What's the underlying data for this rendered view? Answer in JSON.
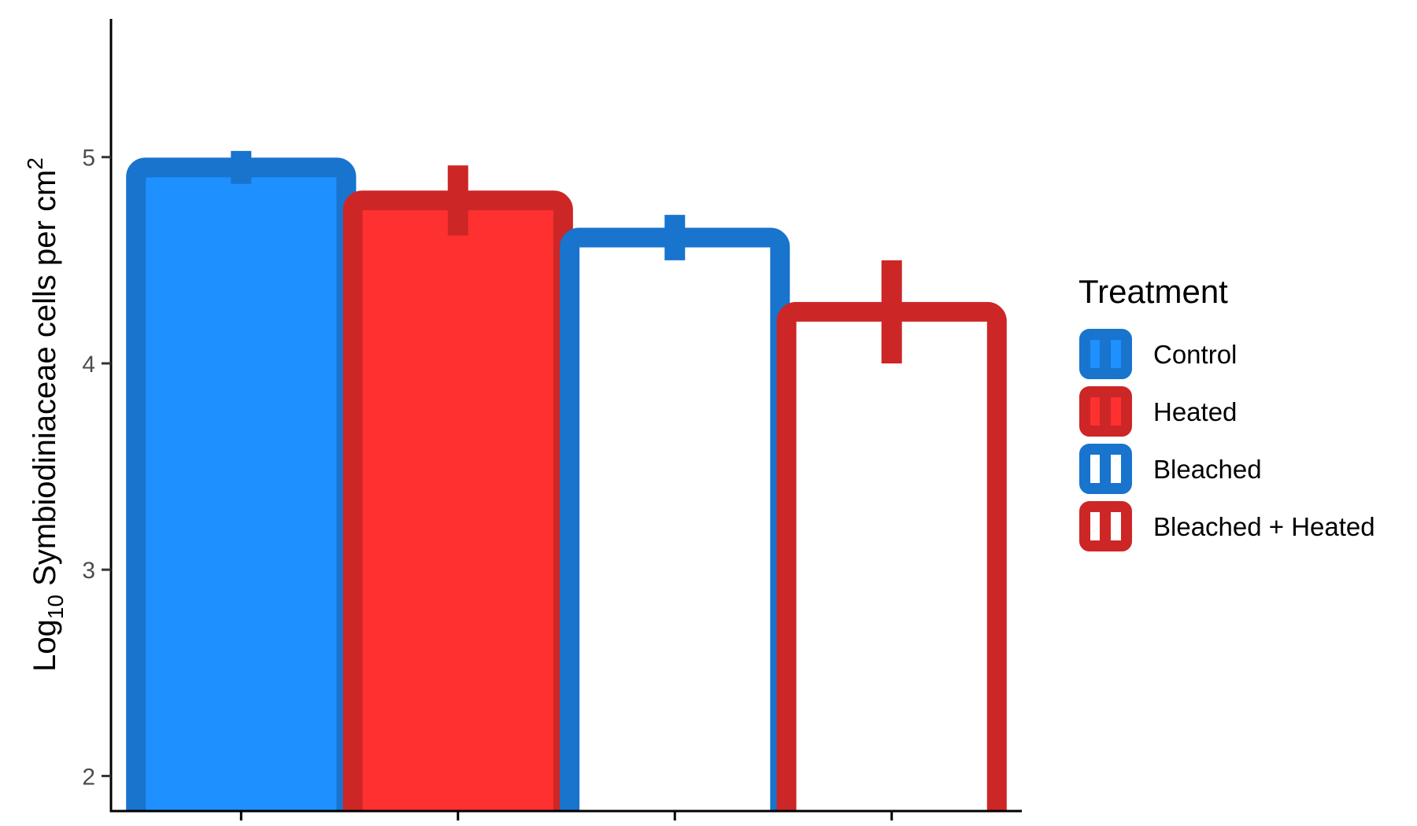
{
  "chart_data": {
    "type": "bar",
    "categories": [
      "Control",
      "Heated",
      "Bleached",
      "Bleached + Heated"
    ],
    "values": [
      4.95,
      4.79,
      4.61,
      4.25
    ],
    "error": [
      0.08,
      0.17,
      0.11,
      0.25
    ],
    "ylim": [
      1.83,
      5.67
    ],
    "yticks": [
      2,
      3,
      4,
      5
    ],
    "ylabel_parts": {
      "base": "Log",
      "sub": "10",
      "main": " Symbiodiniaceae cells per cm",
      "sup": "2"
    },
    "xlabel": "",
    "grid": false,
    "legend": {
      "title": "Treatment",
      "position": "right",
      "entries": [
        {
          "label": "Control",
          "fill": "#1e90ff",
          "stroke": "#1874cd"
        },
        {
          "label": "Heated",
          "fill": "#ff3030",
          "stroke": "#cd2626"
        },
        {
          "label": "Bleached",
          "fill": "#ffffff",
          "stroke": "#1874cd"
        },
        {
          "label": "Bleached + Heated",
          "fill": "#ffffff",
          "stroke": "#cd2626"
        }
      ]
    }
  }
}
